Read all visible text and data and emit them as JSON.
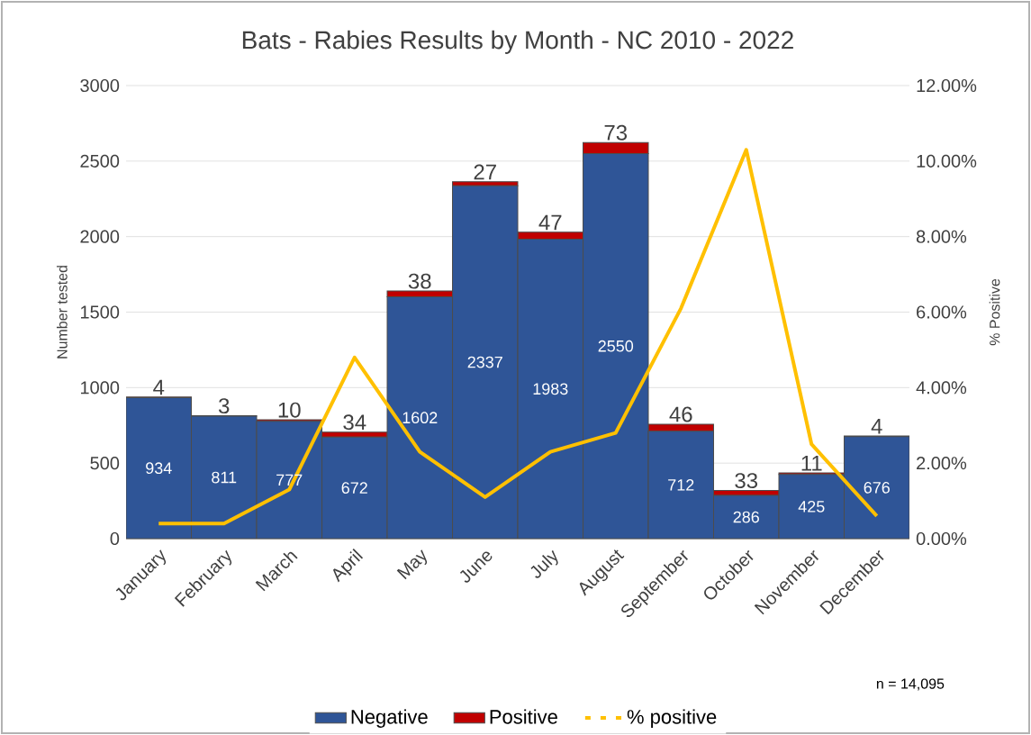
{
  "chart_data": {
    "type": "bar",
    "title": "Bats - Rabies Results by Month - NC 2010 - 2022",
    "categories": [
      "January",
      "February",
      "March",
      "April",
      "May",
      "June",
      "July",
      "August",
      "September",
      "October",
      "November",
      "December"
    ],
    "series": [
      {
        "name": "Negative",
        "color": "#2f5597",
        "values": [
          934,
          811,
          777,
          672,
          1602,
          2337,
          1983,
          2550,
          712,
          286,
          425,
          676
        ],
        "value_labels": [
          "934",
          "811",
          "777",
          "672",
          "1602",
          "2337",
          "1983",
          "2550",
          "712",
          "286",
          "425",
          "676"
        ]
      },
      {
        "name": "Positive",
        "color": "#c00000",
        "values": [
          4,
          3,
          10,
          34,
          38,
          27,
          47,
          73,
          46,
          33,
          11,
          4
        ],
        "value_labels": [
          "4",
          "3",
          "10",
          "34",
          "38",
          "27",
          "47",
          "73",
          "46",
          "33",
          "11",
          "4"
        ]
      },
      {
        "name": "% positive",
        "type": "line",
        "axis": "y2",
        "color": "#ffc000",
        "values": [
          0.4,
          0.4,
          1.3,
          4.8,
          2.3,
          1.1,
          2.3,
          2.8,
          6.1,
          10.3,
          2.5,
          0.6
        ]
      }
    ],
    "stacked": true,
    "ylabel": "Number tested",
    "y2label": "% Positive",
    "ylim": [
      0,
      3000
    ],
    "yticks": [
      0,
      500,
      1000,
      1500,
      2000,
      2500,
      3000
    ],
    "y2lim": [
      0,
      12
    ],
    "y2ticks": [
      {
        "value": 0,
        "label": "0.00%"
      },
      {
        "value": 2,
        "label": "2.00%"
      },
      {
        "value": 4,
        "label": "4.00%"
      },
      {
        "value": 6,
        "label": "6.00%"
      },
      {
        "value": 8,
        "label": "8.00%"
      },
      {
        "value": 10,
        "label": "10.00%"
      },
      {
        "value": 12,
        "label": "12.00%"
      }
    ],
    "grid": "y",
    "legend": "bottom",
    "annotations": [
      "n = 14,095"
    ]
  }
}
